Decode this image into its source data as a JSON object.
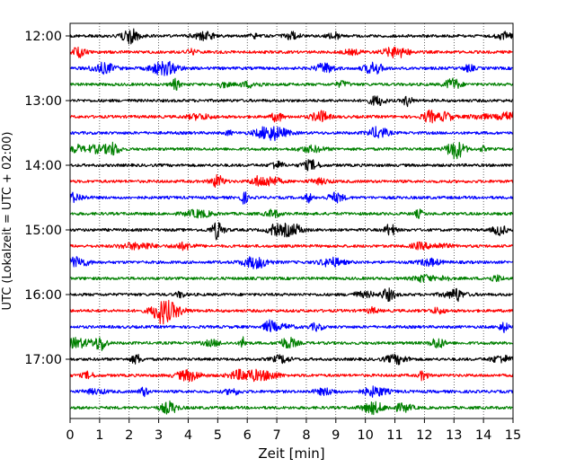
{
  "chart_data": {
    "type": "line",
    "title": "",
    "xlabel": "Zeit  [min]",
    "ylabel": "UTC (Lokalzeit = UTC + 02:00)",
    "xlim": [
      0,
      15
    ],
    "x_ticks": [
      "0",
      "1",
      "2",
      "3",
      "4",
      "5",
      "6",
      "7",
      "8",
      "9",
      "10",
      "11",
      "12",
      "13",
      "14",
      "15"
    ],
    "y_ticks": [
      "12:00",
      "13:00",
      "14:00",
      "15:00",
      "16:00",
      "17:00"
    ],
    "grid": "vertical dotted",
    "trace_interval_min": 15,
    "trace_colors_cycle": [
      "#000000",
      "#ff0000",
      "#0000ff",
      "#008000"
    ],
    "traces": [
      {
        "start": "12:00",
        "color": "#000000"
      },
      {
        "start": "12:15",
        "color": "#ff0000"
      },
      {
        "start": "12:30",
        "color": "#0000ff"
      },
      {
        "start": "12:45",
        "color": "#008000"
      },
      {
        "start": "13:00",
        "color": "#000000"
      },
      {
        "start": "13:15",
        "color": "#ff0000"
      },
      {
        "start": "13:30",
        "color": "#0000ff"
      },
      {
        "start": "13:45",
        "color": "#008000"
      },
      {
        "start": "14:00",
        "color": "#000000"
      },
      {
        "start": "14:15",
        "color": "#ff0000"
      },
      {
        "start": "14:30",
        "color": "#0000ff"
      },
      {
        "start": "14:45",
        "color": "#008000"
      },
      {
        "start": "15:00",
        "color": "#000000"
      },
      {
        "start": "15:15",
        "color": "#ff0000"
      },
      {
        "start": "15:30",
        "color": "#0000ff"
      },
      {
        "start": "15:45",
        "color": "#008000"
      },
      {
        "start": "16:00",
        "color": "#000000"
      },
      {
        "start": "16:15",
        "color": "#ff0000"
      },
      {
        "start": "16:30",
        "color": "#0000ff"
      },
      {
        "start": "16:45",
        "color": "#008000"
      },
      {
        "start": "17:00",
        "color": "#000000"
      },
      {
        "start": "17:15",
        "color": "#ff0000"
      },
      {
        "start": "17:30",
        "color": "#0000ff"
      },
      {
        "start": "17:45",
        "color": "#008000"
      }
    ]
  }
}
